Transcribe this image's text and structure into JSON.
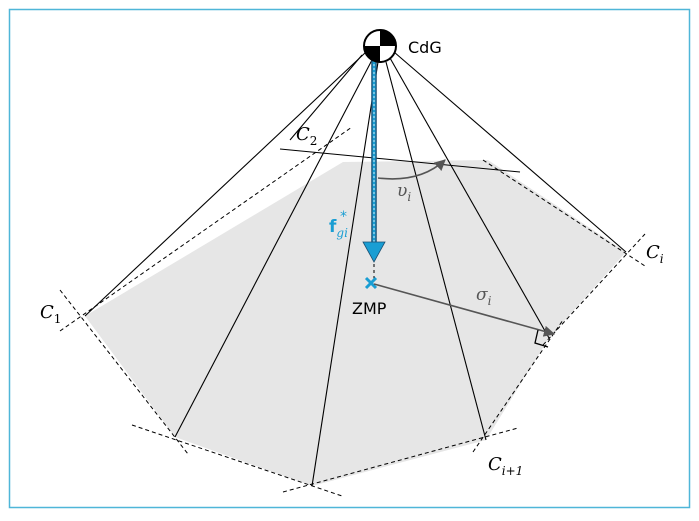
{
  "labels": {
    "cog": "CdG",
    "zmp": "ZMP",
    "force_main": "f",
    "force_sup": "*",
    "force_sub": "gi",
    "c1_main": "C",
    "c1_sub": "1",
    "c2_main": "C",
    "c2_sub": "2",
    "ci_main": "C",
    "ci_sub": "i",
    "ci1_main": "C",
    "ci1_sub": "i+1",
    "angle_main": "υ",
    "angle_sub": "i",
    "distance_main": "σ",
    "distance_sub": "i"
  },
  "colors": {
    "frame": "#4fb6d8",
    "force": "#1a9ed3",
    "region_fill": "#e6e6e6",
    "line": "#000000",
    "annotation": "#555555"
  }
}
